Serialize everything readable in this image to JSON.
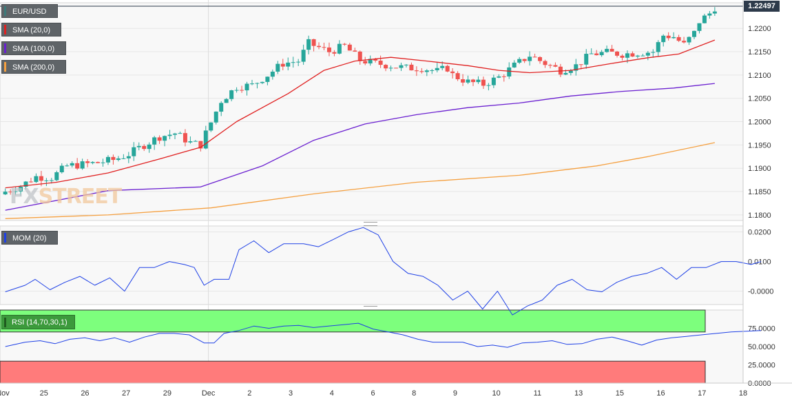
{
  "instrument": "EUR/USD",
  "last_price": "1.22497",
  "watermark": {
    "part1": "FX",
    "part2": "STREET"
  },
  "overlays": [
    {
      "label": "SMA (20,0)",
      "color": "#e02020"
    },
    {
      "label": "SMA (100,0)",
      "color": "#6a1fd0"
    },
    {
      "label": "SMA (200,0)",
      "color": "#f5a040"
    }
  ],
  "colors": {
    "up": "#26a69a",
    "down": "#ef5350",
    "momentum": "#1e40e6",
    "rsi": "#1e40e6",
    "rsi_upper_zone": "#7dff7d",
    "rsi_lower_zone": "#ff7b7b"
  },
  "x_axis": {
    "labels": [
      "Nov",
      "25",
      "26",
      "27",
      "29",
      "Dec",
      "2",
      "3",
      "4",
      "6",
      "8",
      "9",
      "10",
      "11",
      "13",
      "15",
      "16",
      "17",
      "18"
    ],
    "positions": [
      0,
      8,
      16,
      24,
      32,
      40,
      48,
      56,
      64,
      72,
      80,
      88,
      96,
      104,
      112,
      120,
      128,
      136,
      144
    ]
  },
  "price_axis": {
    "ticks": [
      "1.2200",
      "1.2150",
      "1.2100",
      "1.2050",
      "1.2000",
      "1.1950",
      "1.1900",
      "1.1850",
      "1.1800"
    ]
  },
  "mom_axis": {
    "ticks": [
      "0.0200",
      "0.0100",
      "-0.0000"
    ]
  },
  "rsi_axis": {
    "ticks": [
      "75.0000",
      "50.0000",
      "25.0000",
      "0.0000"
    ]
  },
  "indicators": {
    "mom_label": "MOM (20)",
    "rsi_label": "RSI (14,70,30,1)"
  },
  "chart_data": [
    {
      "type": "candlestick",
      "title": "EUR/USD",
      "ylim": [
        1.1788,
        1.2255
      ],
      "x_label_note": "x is the 4-hour bar index; date labels at bars listed in x_axis",
      "series_meta": [
        {
          "name": "SMA (20,0)"
        },
        {
          "name": "SMA (100,0)"
        },
        {
          "name": "SMA (200,0)"
        }
      ],
      "close_anchors": [
        [
          0,
          1.185
        ],
        [
          3,
          1.1862
        ],
        [
          6,
          1.1882
        ],
        [
          9,
          1.188
        ],
        [
          12,
          1.1905
        ],
        [
          15,
          1.1908
        ],
        [
          18,
          1.1912
        ],
        [
          21,
          1.1918
        ],
        [
          24,
          1.193
        ],
        [
          27,
          1.195
        ],
        [
          30,
          1.1968
        ],
        [
          33,
          1.1975
        ],
        [
          36,
          1.1955
        ],
        [
          38,
          1.195
        ],
        [
          39,
          1.1975
        ],
        [
          42,
          1.2045
        ],
        [
          45,
          1.2075
        ],
        [
          48,
          1.2078
        ],
        [
          51,
          1.21
        ],
        [
          54,
          1.2125
        ],
        [
          57,
          1.213
        ],
        [
          59,
          1.2168
        ],
        [
          63,
          1.215
        ],
        [
          66,
          1.2162
        ],
        [
          69,
          1.2132
        ],
        [
          72,
          1.2125
        ],
        [
          75,
          1.212
        ],
        [
          78,
          1.2115
        ],
        [
          81,
          1.2115
        ],
        [
          84,
          1.2108
        ],
        [
          86,
          1.2115
        ],
        [
          87,
          1.21
        ],
        [
          90,
          1.2085
        ],
        [
          93,
          1.208
        ],
        [
          96,
          1.2095
        ],
        [
          99,
          1.212
        ],
        [
          102,
          1.2142
        ],
        [
          105,
          1.2125
        ],
        [
          108,
          1.211
        ],
        [
          111,
          1.212
        ],
        [
          114,
          1.2145
        ],
        [
          117,
          1.2148
        ],
        [
          120,
          1.2145
        ],
        [
          123,
          1.2148
        ],
        [
          126,
          1.215
        ],
        [
          128,
          1.2185
        ],
        [
          130,
          1.2182
        ],
        [
          132,
          1.2165
        ],
        [
          134,
          1.219
        ],
        [
          135,
          1.2215
        ],
        [
          137,
          1.2232
        ],
        [
          138,
          1.2245
        ]
      ],
      "sma20": [
        [
          0,
          1.1858
        ],
        [
          10,
          1.187
        ],
        [
          20,
          1.189
        ],
        [
          30,
          1.192
        ],
        [
          38,
          1.1945
        ],
        [
          45,
          1.2
        ],
        [
          55,
          1.206
        ],
        [
          62,
          1.211
        ],
        [
          68,
          1.213
        ],
        [
          75,
          1.2138
        ],
        [
          82,
          1.213
        ],
        [
          90,
          1.212
        ],
        [
          96,
          1.211
        ],
        [
          102,
          1.2105
        ],
        [
          110,
          1.211
        ],
        [
          118,
          1.2125
        ],
        [
          125,
          1.2137
        ],
        [
          131,
          1.2145
        ],
        [
          138,
          1.2175
        ]
      ],
      "sma100": [
        [
          0,
          1.181
        ],
        [
          20,
          1.1852
        ],
        [
          38,
          1.186
        ],
        [
          50,
          1.1905
        ],
        [
          60,
          1.196
        ],
        [
          70,
          1.1995
        ],
        [
          80,
          1.2015
        ],
        [
          90,
          1.203
        ],
        [
          100,
          1.204
        ],
        [
          110,
          1.2055
        ],
        [
          120,
          1.2065
        ],
        [
          130,
          1.2072
        ],
        [
          138,
          1.2082
        ]
      ],
      "sma200": [
        [
          0,
          1.1792
        ],
        [
          20,
          1.18
        ],
        [
          40,
          1.1815
        ],
        [
          60,
          1.1845
        ],
        [
          80,
          1.187
        ],
        [
          100,
          1.1885
        ],
        [
          115,
          1.1905
        ],
        [
          125,
          1.1925
        ],
        [
          138,
          1.1955
        ]
      ]
    },
    {
      "type": "line",
      "title": "MOM (20)",
      "ylim": [
        -0.0045,
        0.022
      ],
      "series": [
        {
          "name": "MOM (20)",
          "points": [
            [
              0,
              -0.0002
            ],
            [
              4,
              0.002
            ],
            [
              6,
              0.004
            ],
            [
              9,
              0.0005
            ],
            [
              12,
              0.003
            ],
            [
              15,
              0.005
            ],
            [
              18,
              0.002
            ],
            [
              21,
              0.0045
            ],
            [
              24,
              0.0
            ],
            [
              27,
              0.008
            ],
            [
              30,
              0.008
            ],
            [
              33,
              0.01
            ],
            [
              36,
              0.009
            ],
            [
              38,
              0.008
            ],
            [
              40,
              0.002
            ],
            [
              42,
              0.004
            ],
            [
              45,
              0.004
            ],
            [
              47,
              0.014
            ],
            [
              50,
              0.017
            ],
            [
              53,
              0.013
            ],
            [
              56,
              0.016
            ],
            [
              60,
              0.016
            ],
            [
              63,
              0.015
            ],
            [
              66,
              0.0175
            ],
            [
              69,
              0.02
            ],
            [
              72,
              0.0215
            ],
            [
              75,
              0.019
            ],
            [
              78,
              0.01
            ],
            [
              81,
              0.006
            ],
            [
              84,
              0.005
            ],
            [
              87,
              0.002
            ],
            [
              90,
              -0.003
            ],
            [
              93,
              0.0
            ],
            [
              96,
              -0.006
            ],
            [
              99,
              0.0
            ],
            [
              102,
              -0.008
            ],
            [
              105,
              -0.005
            ],
            [
              108,
              -0.003
            ],
            [
              111,
              0.002
            ],
            [
              114,
              0.004
            ],
            [
              117,
              0.0005
            ],
            [
              120,
              -0.0002
            ],
            [
              123,
              0.003
            ],
            [
              126,
              0.005
            ],
            [
              129,
              0.006
            ],
            [
              132,
              0.008
            ],
            [
              135,
              0.004
            ],
            [
              138,
              0.008
            ],
            [
              141,
              0.008
            ],
            [
              144,
              0.01
            ],
            [
              147,
              0.01
            ],
            [
              150,
              0.009
            ],
            [
              152,
              0.01
            ]
          ]
        }
      ]
    },
    {
      "type": "line",
      "title": "RSI (14,70,30,1)",
      "ylim": [
        0,
        100
      ],
      "overbought": 70,
      "oversold": 30,
      "series": [
        {
          "name": "RSI (14,70,30,1)",
          "points": [
            [
              0,
              50
            ],
            [
              4,
              56
            ],
            [
              7,
              58
            ],
            [
              10,
              54
            ],
            [
              13,
              60
            ],
            [
              16,
              62
            ],
            [
              19,
              58
            ],
            [
              22,
              62
            ],
            [
              25,
              56
            ],
            [
              28,
              63
            ],
            [
              31,
              68
            ],
            [
              34,
              68
            ],
            [
              37,
              66
            ],
            [
              40,
              55
            ],
            [
              42,
              55
            ],
            [
              44,
              68
            ],
            [
              47,
              72
            ],
            [
              50,
              78
            ],
            [
              53,
              75
            ],
            [
              56,
              78
            ],
            [
              59,
              79
            ],
            [
              62,
              76
            ],
            [
              65,
              78
            ],
            [
              68,
              80
            ],
            [
              71,
              82
            ],
            [
              74,
              74
            ],
            [
              77,
              70
            ],
            [
              80,
              66
            ],
            [
              83,
              60
            ],
            [
              86,
              56
            ],
            [
              89,
              56
            ],
            [
              92,
              56
            ],
            [
              95,
              50
            ],
            [
              98,
              52
            ],
            [
              101,
              49
            ],
            [
              104,
              55
            ],
            [
              107,
              56
            ],
            [
              110,
              58
            ],
            [
              113,
              53
            ],
            [
              116,
              54
            ],
            [
              119,
              60
            ],
            [
              122,
              63
            ],
            [
              125,
              58
            ],
            [
              128,
              52
            ],
            [
              131,
              59
            ],
            [
              134,
              62
            ],
            [
              137,
              64
            ],
            [
              140,
              66
            ],
            [
              143,
              68
            ],
            [
              146,
              70
            ],
            [
              149,
              71
            ],
            [
              152,
              72
            ]
          ]
        }
      ]
    }
  ]
}
